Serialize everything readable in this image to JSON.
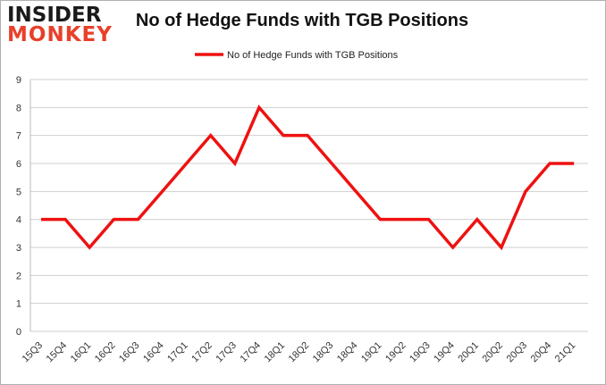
{
  "brand": {
    "line1": "INSIDER",
    "line2": "MONKEY"
  },
  "chart_data": {
    "type": "line",
    "title": "No of Hedge Funds with TGB Positions",
    "xlabel": "",
    "ylabel": "",
    "ylim": [
      0,
      9
    ],
    "yticks": [
      0,
      1,
      2,
      3,
      4,
      5,
      6,
      7,
      8,
      9
    ],
    "grid": true,
    "legend_position": "top-center",
    "categories": [
      "15Q3",
      "15Q4",
      "16Q1",
      "16Q2",
      "16Q3",
      "16Q4",
      "17Q1",
      "17Q2",
      "17Q3",
      "17Q4",
      "18Q1",
      "18Q2",
      "18Q3",
      "18Q4",
      "19Q1",
      "19Q2",
      "19Q3",
      "19Q4",
      "20Q1",
      "20Q2",
      "20Q3",
      "20Q4",
      "21Q1"
    ],
    "series": [
      {
        "name": "No of Hedge Funds with TGB Positions",
        "color": "#ee1111",
        "values": [
          4,
          4,
          3,
          4,
          4,
          5,
          6,
          7,
          6,
          8,
          7,
          7,
          6,
          5,
          4,
          4,
          4,
          3,
          4,
          3,
          5,
          6,
          6
        ]
      }
    ]
  }
}
